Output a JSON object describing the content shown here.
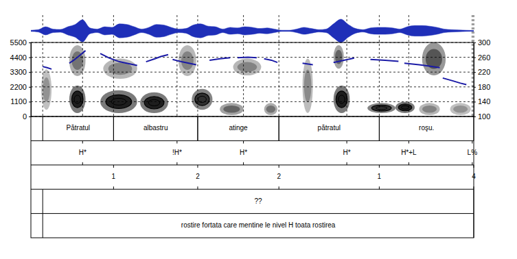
{
  "chart_data": {
    "type": "spectrogram",
    "xlim": [
      0,
      3.0
    ],
    "ylim": [
      0,
      5500
    ],
    "yticks": [
      0,
      1100,
      2200,
      3300,
      4400,
      5500
    ],
    "y2lim": [
      100,
      300
    ],
    "y2ticks": [
      100,
      140,
      180,
      220,
      260,
      300
    ],
    "tick_labels": "y",
    "grid": true,
    "waveform": {
      "color": "#1f2fb8",
      "ylim": [
        -1,
        1
      ],
      "x": [
        0.0,
        0.05,
        0.1,
        0.15,
        0.2,
        0.25,
        0.3,
        0.35,
        0.4,
        0.45,
        0.5,
        0.55,
        0.6,
        0.65,
        0.7,
        0.75,
        0.8,
        0.85,
        0.9,
        0.95,
        1.0,
        1.05,
        1.1,
        1.15,
        1.2,
        1.25,
        1.3,
        1.35,
        1.4,
        1.45,
        1.5,
        1.55,
        1.6,
        1.65,
        1.7,
        1.75,
        1.8,
        1.85,
        1.9,
        1.95,
        2.0,
        2.05,
        2.1,
        2.15,
        2.2,
        2.25,
        2.3,
        2.35,
        2.4,
        2.45,
        2.5,
        2.55,
        2.6,
        2.65,
        2.7,
        2.75,
        2.8,
        2.85,
        2.9,
        2.95,
        3.0
      ],
      "values": [
        0.05,
        0.1,
        0.35,
        0.15,
        0.12,
        0.35,
        0.55,
        0.95,
        0.25,
        0.15,
        0.35,
        0.3,
        0.6,
        0.55,
        0.35,
        0.15,
        0.3,
        0.55,
        0.5,
        0.3,
        0.15,
        0.2,
        0.5,
        0.6,
        0.4,
        0.35,
        0.15,
        0.3,
        0.25,
        0.35,
        0.3,
        0.2,
        0.25,
        0.15,
        0.05,
        0.05,
        0.15,
        0.3,
        0.2,
        0.1,
        0.15,
        0.6,
        1.0,
        0.55,
        0.2,
        0.1,
        0.25,
        0.3,
        0.3,
        0.25,
        0.15,
        0.35,
        0.45,
        0.45,
        0.4,
        0.3,
        0.15,
        0.1,
        0.08,
        0.05,
        0.03
      ]
    },
    "spectrogram": {
      "cells": [
        {
          "x0": 0.26,
          "x1": 0.37,
          "y0": 250,
          "y1": 2300,
          "level": 1
        },
        {
          "x0": 0.26,
          "x1": 0.37,
          "y0": 3000,
          "y1": 5300,
          "level": 0.5
        },
        {
          "x0": 0.07,
          "x1": 0.14,
          "y0": 500,
          "y1": 3500,
          "level": 0.3
        },
        {
          "x0": 0.47,
          "x1": 0.72,
          "y0": 250,
          "y1": 1950,
          "level": 1
        },
        {
          "x0": 0.74,
          "x1": 0.93,
          "y0": 250,
          "y1": 1800,
          "level": 1
        },
        {
          "x0": 0.49,
          "x1": 0.72,
          "y0": 2800,
          "y1": 4300,
          "level": 0.4
        },
        {
          "x0": 1.09,
          "x1": 1.23,
          "y0": 500,
          "y1": 2050,
          "level": 0.9
        },
        {
          "x0": 1.0,
          "x1": 1.12,
          "y0": 3000,
          "y1": 5300,
          "level": 0.4
        },
        {
          "x0": 1.28,
          "x1": 1.44,
          "y0": 100,
          "y1": 1000,
          "level": 0.6
        },
        {
          "x0": 1.37,
          "x1": 1.56,
          "y0": 3050,
          "y1": 4300,
          "level": 0.4
        },
        {
          "x0": 1.58,
          "x1": 1.67,
          "y0": 100,
          "y1": 1000,
          "level": 0.5
        },
        {
          "x0": 1.84,
          "x1": 1.91,
          "y0": 250,
          "y1": 4300,
          "level": 0.35
        },
        {
          "x0": 2.05,
          "x1": 2.16,
          "y0": 250,
          "y1": 2300,
          "level": 1
        },
        {
          "x0": 2.05,
          "x1": 2.12,
          "y0": 3550,
          "y1": 5300,
          "level": 0.6
        },
        {
          "x0": 2.28,
          "x1": 2.47,
          "y0": 250,
          "y1": 1000,
          "level": 0.9
        },
        {
          "x0": 2.47,
          "x1": 2.6,
          "y0": 250,
          "y1": 1100,
          "level": 1
        },
        {
          "x0": 2.65,
          "x1": 2.81,
          "y0": 3050,
          "y1": 5500,
          "level": 0.7
        },
        {
          "x0": 2.63,
          "x1": 2.77,
          "y0": 100,
          "y1": 1000,
          "level": 0.4
        },
        {
          "x0": 2.84,
          "x1": 2.98,
          "y0": 100,
          "y1": 1000,
          "level": 0.3
        }
      ]
    },
    "series": [
      {
        "type": "line",
        "axis": "y2",
        "color": "#1a1aa6",
        "x": [
          0.08,
          0.11,
          0.14,
          null,
          0.26,
          0.29,
          0.33,
          0.37,
          null,
          0.47,
          0.53,
          0.6,
          0.67,
          0.72,
          null,
          0.78,
          0.84,
          0.88,
          0.93,
          null,
          0.96,
          1.02,
          1.07,
          1.12,
          null,
          1.21,
          1.28,
          1.35,
          null,
          1.4,
          1.47,
          1.53,
          null,
          1.58,
          1.63,
          1.67,
          null,
          1.84,
          1.91,
          null,
          2.05,
          2.12,
          2.19,
          null,
          2.3,
          2.4,
          2.49,
          null,
          2.53,
          2.63,
          2.7,
          2.77,
          null,
          2.79,
          2.86,
          2.91,
          2.95
        ],
        "values": [
          235,
          232,
          228,
          null,
          244,
          252,
          265,
          278,
          null,
          270,
          258,
          248,
          242,
          238,
          null,
          248,
          256,
          262,
          267,
          null,
          254,
          248,
          244,
          240,
          null,
          252,
          256,
          259,
          null,
          259,
          260,
          259,
          null,
          256,
          252,
          246,
          null,
          244,
          240,
          null,
          246,
          252,
          258,
          null,
          254,
          252,
          249,
          null,
          244,
          240,
          236,
          232,
          null,
          204,
          196,
          190,
          186
        ]
      }
    ],
    "tiers": [
      {
        "intervals": [
          {
            "start": 0.08,
            "end": 0.56,
            "label": "Pătratul"
          },
          {
            "start": 0.56,
            "end": 1.13,
            "label": "albastru"
          },
          {
            "start": 1.13,
            "end": 1.68,
            "label": "atinge"
          },
          {
            "start": 1.68,
            "end": 2.36,
            "label": "pătratul"
          },
          {
            "start": 2.36,
            "end": 3.0,
            "label": "roşu."
          }
        ]
      },
      {
        "points": [
          {
            "time": 0.35,
            "label": "H*"
          },
          {
            "time": 0.99,
            "label": "!H*"
          },
          {
            "time": 1.44,
            "label": "H*"
          },
          {
            "time": 2.14,
            "label": "H*"
          },
          {
            "time": 2.56,
            "label": "H*+L"
          },
          {
            "time": 2.99,
            "label": "L%"
          }
        ]
      },
      {
        "points": [
          {
            "time": 0.56,
            "label": "1"
          },
          {
            "time": 1.13,
            "label": "2"
          },
          {
            "time": 1.68,
            "label": "2"
          },
          {
            "time": 2.36,
            "label": "1"
          },
          {
            "time": 3.0,
            "label": "4"
          }
        ]
      },
      {
        "intervals": [
          {
            "start": 0.08,
            "end": 3.0,
            "label": "??"
          }
        ]
      },
      {
        "intervals": [
          {
            "start": 0.08,
            "end": 3.0,
            "label": "rostire fortata care mentine le nivel H toata rostirea"
          }
        ]
      }
    ]
  }
}
